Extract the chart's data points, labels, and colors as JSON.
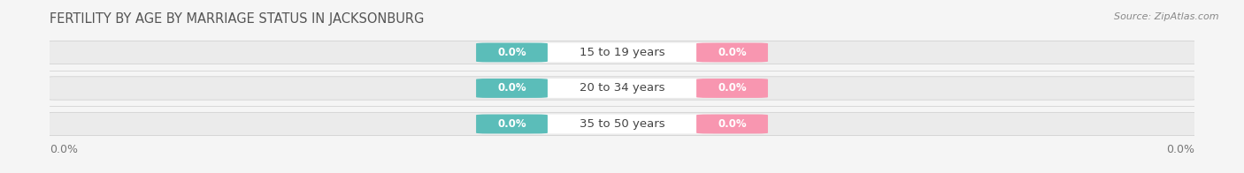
{
  "title": "FERTILITY BY AGE BY MARRIAGE STATUS IN JACKSONBURG",
  "source": "Source: ZipAtlas.com",
  "categories": [
    "15 to 19 years",
    "20 to 34 years",
    "35 to 50 years"
  ],
  "married_values": [
    0.0,
    0.0,
    0.0
  ],
  "unmarried_values": [
    0.0,
    0.0,
    0.0
  ],
  "married_color": "#5bbdb9",
  "unmarried_color": "#f896b0",
  "bar_bg_color": "#ebebeb",
  "bar_bg_dark": "#d8d8d8",
  "title_fontsize": 10.5,
  "source_fontsize": 8,
  "value_fontsize": 8.5,
  "category_fontsize": 9.5,
  "legend_fontsize": 9,
  "axis_label_fontsize": 9,
  "background_color": "#f5f5f5",
  "title_color": "#555555",
  "source_color": "#888888",
  "category_color": "#444444",
  "axis_label_color": "#777777"
}
